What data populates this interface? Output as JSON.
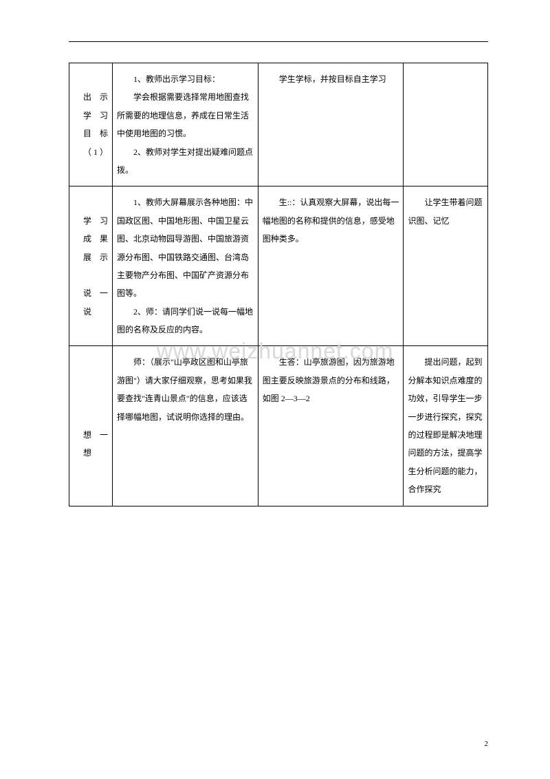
{
  "watermark": "www.weizhuannet.com",
  "pageNumber": "2",
  "table": {
    "rows": [
      {
        "label": "　　出示学习目标（1）",
        "teacher": "1、教师出示学习目标：\n学会根据需要选择常用地图查找所需要的地理信息，养成在日常生活中使用地图的习惯。\n2、教师对学生对提出疑难问题点拨。",
        "student": "学生学标，并按目标自主学习",
        "note": ""
      },
      {
        "label": "　　学习成果展示\n　　说一说",
        "teacher": "1、教师大屏幕展示各种地图：中国政区图、中国地形图、中国卫星云图、北京动物园导游图、中国旅游资源分布图、中国铁路交通图、台湾岛主要物产分布图、中国矿产资源分布图等。\n2、师：请同学们说一说每一幅地图的名称及反应的内容。",
        "student": "生::：认真观察大屏幕，说出每一幅地图的名称和提供的信息，感受地图种类多。",
        "note": "让学生带着问题识图、记忆"
      },
      {
        "label": "\n\n\n　　想一想",
        "teacher": "师：（展示\"山亭政区图和山亭旅游图\"）请大家仔细观察，思考如果我要查找\"连青山景点\"的信息，应该选择哪幅地图，试说明你选择的理由。",
        "student": "生答：山亭旅游图，因为旅游地图主要反映旅游景点的分布和线路，如图 2—3—2",
        "note": "提出问题，起到分解本知识点难度的功效，引导学生一步一步进行探究，探究的过程即是解决地理问题的方法，提高学生分析问题的能力，合作探究"
      }
    ]
  }
}
